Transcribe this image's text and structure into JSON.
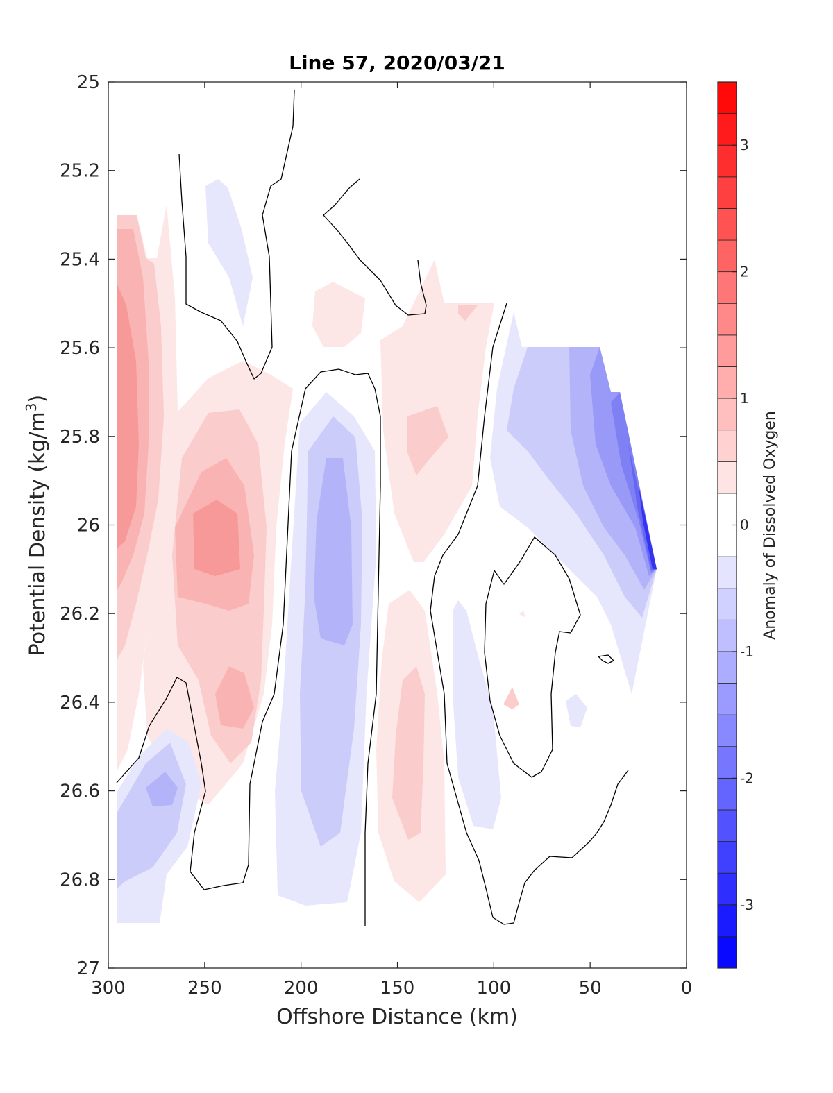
{
  "chart_data": {
    "type": "heatmap",
    "subtype": "filled-contour-section",
    "title": "Line 57, 2020/03/21",
    "xlabel": "Offshore Distance (km)",
    "ylabel_main": "Potential Density (kg/m",
    "ylabel_sup": "3",
    "ylabel_tail": ")",
    "colorbar_label": "Anomaly of Dissolved Oxygen",
    "xlim": [
      300,
      0
    ],
    "x_reversed": true,
    "ylim": [
      25,
      27
    ],
    "y_reversed": true,
    "xticks": [
      300,
      250,
      200,
      150,
      100,
      50,
      0
    ],
    "xtick_labels": [
      "300",
      "250",
      "200",
      "150",
      "100",
      "50",
      "0"
    ],
    "yticks": [
      25,
      25.2,
      25.4,
      25.6,
      25.8,
      26,
      26.2,
      26.4,
      26.6,
      26.8,
      27
    ],
    "ytick_labels": [
      "25",
      "25.2",
      "25.4",
      "25.6",
      "25.8",
      "26",
      "26.2",
      "26.4",
      "26.6",
      "26.8",
      "27"
    ],
    "colorbar_range": [
      -3.5,
      3.5
    ],
    "colorbar_ticks": [
      -3,
      -2,
      -1,
      0,
      1,
      2,
      3
    ],
    "colorbar_tick_labels": [
      "-3",
      "-2",
      "-1",
      "0",
      "1",
      "2",
      "3"
    ],
    "colorbar_step": 0.25,
    "colormap": {
      "negative": "#0000ff",
      "zero": "#ffffff",
      "positive": "#ff0000"
    },
    "zero_contour_color": "#000000",
    "grid": false,
    "features": [
      {
        "name": "positive anomaly core near offshore edge",
        "x": 290,
        "y": 25.9,
        "value": 1.5
      },
      {
        "name": "positive anomaly core",
        "x": 240,
        "y": 26.05,
        "value": 1.0
      },
      {
        "name": "positive anomaly lobe",
        "x": 235,
        "y": 26.4,
        "value": 0.75
      },
      {
        "name": "negative anomaly core",
        "x": 180,
        "y": 26.1,
        "value": -1.0
      },
      {
        "name": "negative anomaly lobe",
        "x": 270,
        "y": 26.6,
        "value": -1.0
      },
      {
        "name": "positive anomaly lobe",
        "x": 145,
        "y": 26.55,
        "value": 0.75
      },
      {
        "name": "positive anomaly lobe",
        "x": 135,
        "y": 25.8,
        "value": 0.5
      },
      {
        "name": "negative anomaly near coast",
        "x": 20,
        "y": 26.1,
        "value": -3.0
      },
      {
        "name": "negative anomaly band",
        "x": 55,
        "y": 25.7,
        "value": -1.5
      }
    ]
  }
}
